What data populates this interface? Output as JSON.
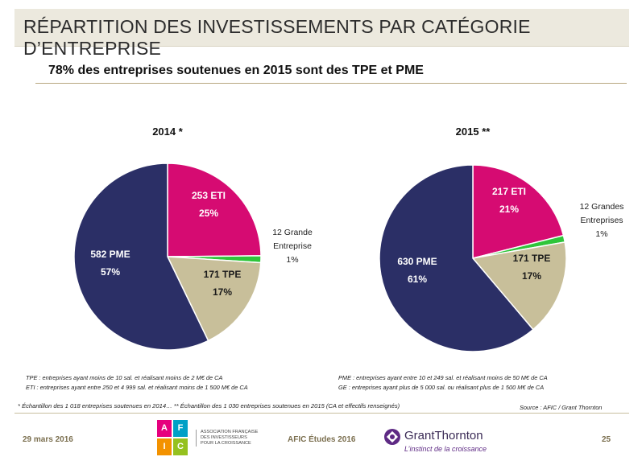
{
  "header": {
    "title": "RÉPARTITION DES INVESTISSEMENTS PAR CATÉGORIE D’ENTREPRISE",
    "subtitle": "78% des entreprises soutenues en 2015 sont des TPE et PME"
  },
  "colors": {
    "pme": "#2b2f66",
    "eti": "#d60b72",
    "tpe": "#c8bf9a",
    "ge": "#2fc53a",
    "title_bg": "#ece9de",
    "rule": "#b7a77f",
    "footer_text": "#7b6f4f"
  },
  "chart_data": [
    {
      "type": "pie",
      "title": "2014 *",
      "slices": [
        {
          "name": "ETI",
          "count": 253,
          "percent": 25,
          "label_lines": [
            "253 ETI",
            "25%"
          ],
          "color": "#d60b72"
        },
        {
          "name": "Grande Entreprise",
          "count": 12,
          "percent": 1,
          "label_lines": [
            "12 Grande",
            "Entreprise",
            "1%"
          ],
          "color": "#2fc53a"
        },
        {
          "name": "TPE",
          "count": 171,
          "percent": 17,
          "label_lines": [
            "171 TPE",
            "17%"
          ],
          "color": "#c8bf9a"
        },
        {
          "name": "PME",
          "count": 582,
          "percent": 57,
          "label_lines": [
            "582 PME",
            "57%"
          ],
          "color": "#2b2f66"
        }
      ]
    },
    {
      "type": "pie",
      "title": "2015 **",
      "slices": [
        {
          "name": "ETI",
          "count": 217,
          "percent": 21,
          "label_lines": [
            "217  ETI",
            "21%"
          ],
          "color": "#d60b72"
        },
        {
          "name": "Grandes Entreprises",
          "count": 12,
          "percent": 1,
          "label_lines": [
            "12 Grandes",
            "Entreprises",
            "1%"
          ],
          "color": "#2fc53a"
        },
        {
          "name": "TPE",
          "count": 171,
          "percent": 17,
          "label_lines": [
            "171  TPE",
            "17%"
          ],
          "color": "#c8bf9a"
        },
        {
          "name": "PME",
          "count": 630,
          "percent": 61,
          "label_lines": [
            "630  PME",
            "61%"
          ],
          "color": "#2b2f66"
        }
      ]
    }
  ],
  "definitions": {
    "tpe": "TPE : entreprises ayant moins de 10 sal. et réalisant moins de 2 M€ de CA",
    "eti": "ETI : entreprises ayant entre 250 et 4 999 sal. et réalisant moins de 1 500 M€ de CA",
    "pme": "PME : entreprises ayant entre 10 et 249 sal. et réalisant moins de 50 M€ de CA",
    "ge": "GE : entreprises ayant plus de 5 000 sal. ou réalisant plus de 1 500 M€ de CA"
  },
  "notes": {
    "sample": "* Échantillon des 1 018 entreprises soutenues en 2014…  ** Échantillon des 1 030 entreprises soutenues en 2015 (CA et effectifs renseignés)",
    "source": "Source : AFIC / Grant Thornton"
  },
  "footer": {
    "date": "29 mars 2016",
    "center": "AFIC Études 2016",
    "page": "25",
    "afic_letters": [
      "A",
      "F",
      "I",
      "C"
    ],
    "afic_colors": [
      "#e6007e",
      "#00a0c6",
      "#f39200",
      "#95c11f"
    ],
    "assoc_lines": [
      "ASSOCIATION FRANÇAISE",
      "DES INVESTISSEURS",
      "POUR LA CROISSANCE"
    ],
    "gt_name": "GrantThornton",
    "gt_tagline": "L’instinct de la croissance"
  }
}
